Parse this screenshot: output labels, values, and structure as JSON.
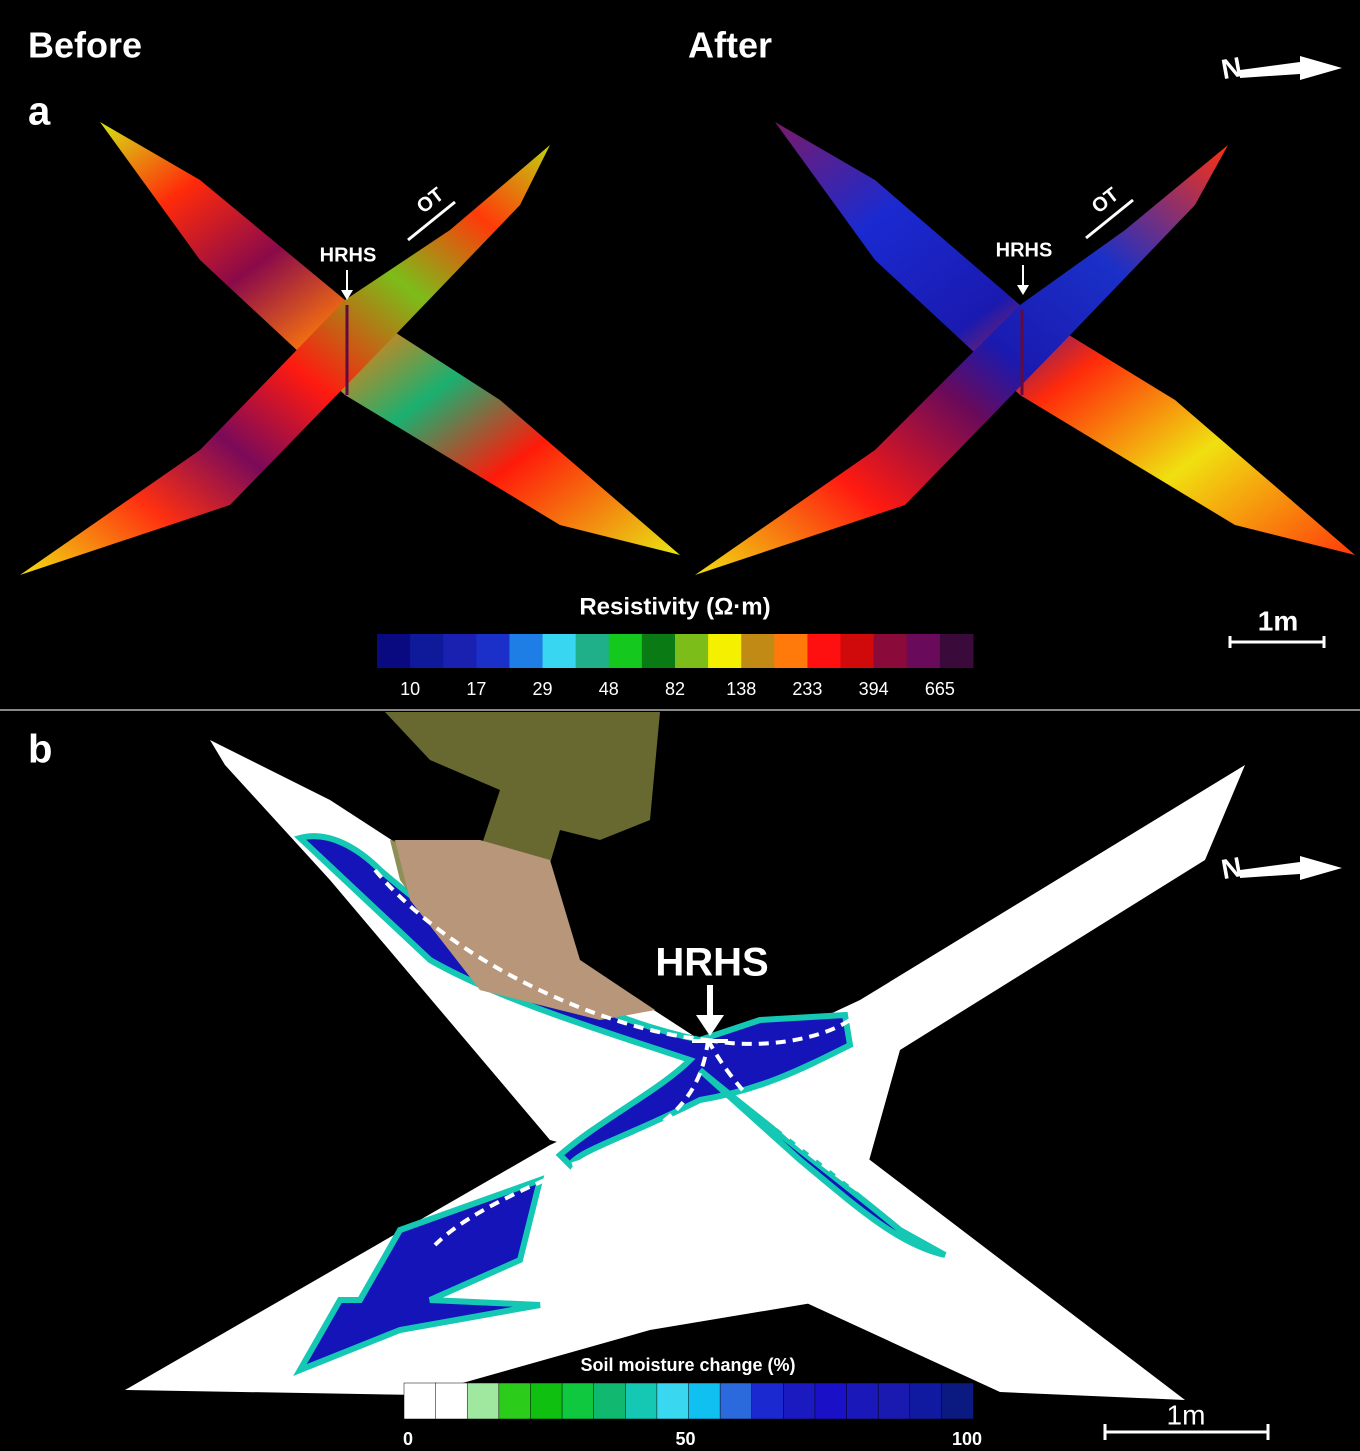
{
  "panel_a": {
    "label": "a",
    "left_title": "Before",
    "right_title": "After",
    "north": "N",
    "left_annotations": {
      "hrhs": "HRHS",
      "ot": "OT"
    },
    "right_annotations": {
      "hrhs": "HRHS",
      "ot": "OT"
    },
    "colorbar": {
      "title": "Resistivity (Ω·m)",
      "colors": [
        "#0a0a80",
        "#0f1a9a",
        "#1a20b0",
        "#1a30c8",
        "#1e7ee6",
        "#38d6f0",
        "#1fb08a",
        "#14c81e",
        "#0a7a14",
        "#7cbd1a",
        "#f5f000",
        "#c08a14",
        "#ff7a0a",
        "#ff1010",
        "#d00a0a",
        "#8a0a3a",
        "#6a0a5a",
        "#3a0a3a"
      ],
      "ticks": [
        10,
        17,
        29,
        48,
        82,
        138,
        233,
        394,
        665
      ]
    },
    "scale_bar": "1m"
  },
  "panel_b": {
    "label": "b",
    "north": "N",
    "hrhs": "HRHS",
    "colorbar": {
      "title": "Soil moisture change (%)",
      "colors": [
        "#ffffff",
        "#ffffff",
        "#a0e8a0",
        "#2ccc1a",
        "#10c010",
        "#10c840",
        "#10b870",
        "#14c8b4",
        "#3ad8f0",
        "#10c0f0",
        "#2a6adc",
        "#1a2ad0",
        "#1a1ac0",
        "#1a10c8",
        "#1a18b8",
        "#1a1ab0",
        "#101aa0",
        "#0a1a80"
      ],
      "ticks": [
        0,
        50,
        100
      ]
    },
    "scale_bar": "1m"
  }
}
